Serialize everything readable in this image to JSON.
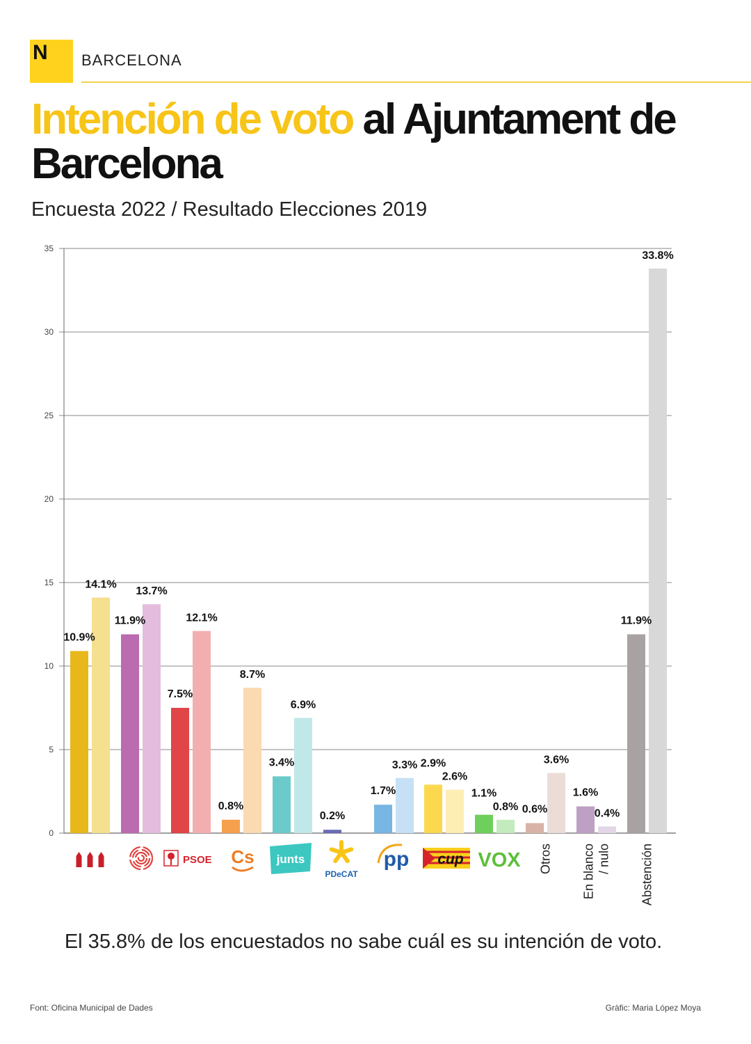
{
  "header": {
    "logo_letter": "N",
    "section": "BARCELONA",
    "title_highlight": "Intención de voto",
    "title_rest": " al Ajuntament de Barcelona",
    "subtitle": "Encuesta 2022 / Resultado Elecciones 2019"
  },
  "chart_data": {
    "type": "bar",
    "title": "Intención de voto al Ajuntament de Barcelona",
    "ylim": [
      0,
      35
    ],
    "yticks": [
      0,
      5,
      10,
      15,
      20,
      25,
      30,
      35
    ],
    "grid": true,
    "series_names": [
      "Encuesta 2022",
      "Resultado Elecciones 2019"
    ],
    "groups": [
      {
        "key": "erc",
        "label": "ERC",
        "logo_text": "",
        "survey": 10.9,
        "survey_label": "10.9%",
        "result": 14.1,
        "result_label": "14.1%",
        "survey_color": "#e8b81a",
        "result_color": "#f5e08f"
      },
      {
        "key": "bcomu",
        "label": "BComú",
        "logo_text": "",
        "survey": 11.9,
        "survey_label": "11.9%",
        "result": 13.7,
        "result_label": "13.7%",
        "survey_color": "#bb6bb0",
        "result_color": "#e3bcde"
      },
      {
        "key": "psoe",
        "label": "PSOE",
        "logo_text": "PSOE",
        "survey": 7.5,
        "survey_label": "7.5%",
        "result": 12.1,
        "result_label": "12.1%",
        "survey_color": "#e04548",
        "result_color": "#f3aeb0"
      },
      {
        "key": "cs",
        "label": "Cs",
        "logo_text": "Cs",
        "survey": 0.8,
        "survey_label": "0.8%",
        "result": 8.7,
        "result_label": "8.7%",
        "survey_color": "#f6a04d",
        "result_color": "#fbd9b1"
      },
      {
        "key": "junts",
        "label": "junts",
        "logo_text": "junts",
        "survey": 3.4,
        "survey_label": "3.4%",
        "result": 6.9,
        "result_label": "6.9%",
        "survey_color": "#6dcaca",
        "result_color": "#c1e8e8"
      },
      {
        "key": "pdecat",
        "label": "PDeCAT",
        "logo_text": "PDeCAT",
        "survey": 0.2,
        "survey_label": "0.2%",
        "result": null,
        "result_label": "",
        "survey_color": "#6a6ab5",
        "result_color": "#cccce8"
      },
      {
        "key": "pp",
        "label": "PP",
        "logo_text": "pp",
        "survey": 1.7,
        "survey_label": "1.7%",
        "result": 3.3,
        "result_label": "3.3%",
        "survey_color": "#78b6e3",
        "result_color": "#c6e1f5"
      },
      {
        "key": "cup",
        "label": "CUP",
        "logo_text": "cup",
        "survey": 2.9,
        "survey_label": "2.9%",
        "result": 2.6,
        "result_label": "2.6%",
        "survey_color": "#fcd84f",
        "result_color": "#fdeeb4"
      },
      {
        "key": "vox",
        "label": "VOX",
        "logo_text": "VOX",
        "survey": 1.1,
        "survey_label": "1.1%",
        "result": 0.8,
        "result_label": "0.8%",
        "survey_color": "#6fcf5c",
        "result_color": "#c4ebbd"
      },
      {
        "key": "otros",
        "label": "Otros",
        "logo_text": "",
        "survey": 0.6,
        "survey_label": "0.6%",
        "result": 3.6,
        "result_label": "3.6%",
        "survey_color": "#d9b3a7",
        "result_color": "#ecdcd8"
      },
      {
        "key": "blanco",
        "label": "En blanco / nulo",
        "label_lines": [
          "En blanco",
          "/ nulo"
        ],
        "logo_text": "",
        "survey": 1.6,
        "survey_label": "1.6%",
        "result": 0.4,
        "result_label": "0.4%",
        "survey_color": "#bda0c4",
        "result_color": "#e3d6e6"
      },
      {
        "key": "abst",
        "label": "Abstención",
        "logo_text": "",
        "survey": 11.9,
        "survey_label": "11.9%",
        "result": 33.8,
        "result_label": "33.8%",
        "survey_color": "#a9a2a2",
        "result_color": "#d8d8d8"
      }
    ]
  },
  "note": "El 35.8% de los encuestados no sabe cuál es su intención de voto.",
  "footer": {
    "source": "Font: Oficina Municipal de Dades",
    "credit": "Gràfic: Maria López Moya"
  }
}
